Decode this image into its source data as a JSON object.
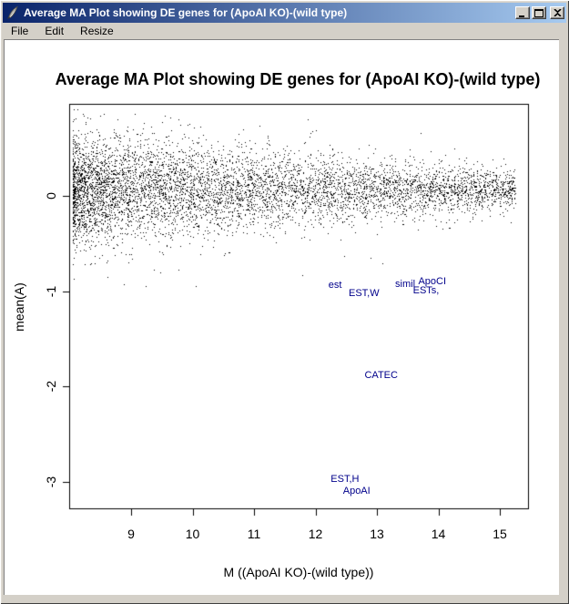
{
  "window": {
    "title": "Average MA Plot showing DE genes for (ApoAI KO)-(wild type)",
    "icon": "quill-feather-icon",
    "buttons": [
      {
        "name": "minimize"
      },
      {
        "name": "maximize"
      },
      {
        "name": "close"
      }
    ]
  },
  "menu": {
    "items": [
      "File",
      "Edit",
      "Resize"
    ]
  },
  "colors": {
    "titlebar_left": "#0a246a",
    "titlebar_right": "#a6caf0",
    "chrome": "#d4d0c8",
    "titlebar_text": "#ffffff",
    "plot_background": "#ffffff",
    "point_color": "#000000",
    "gene_label_color": "#00008b",
    "axis_color": "#000000"
  },
  "chart_data": {
    "type": "scatter",
    "title": "Average MA Plot showing DE genes for (ApoAI KO)-(wild type)",
    "xlabel": "M ((ApoAI KO)-(wild type))",
    "ylabel": "mean(A)",
    "x_ticks": [
      9,
      10,
      11,
      12,
      13,
      14,
      15
    ],
    "y_ticks": [
      0,
      -1,
      -2,
      -3
    ],
    "xlim": [
      8.0,
      15.45
    ],
    "ylim": [
      -3.28,
      0.97
    ],
    "grid": false,
    "legend": null,
    "gene_labels": [
      {
        "text": "est",
        "x": 12.32,
        "y": -0.94
      },
      {
        "text": "EST,W",
        "x": 12.79,
        "y": -1.02
      },
      {
        "text": "simil",
        "x": 13.46,
        "y": -0.93
      },
      {
        "text": "ApoCI",
        "x": 13.9,
        "y": -0.9
      },
      {
        "text": "ESTs,",
        "x": 13.8,
        "y": -0.99
      },
      {
        "text": "CATEC",
        "x": 13.07,
        "y": -1.88
      },
      {
        "text": "EST,H",
        "x": 12.48,
        "y": -2.97
      },
      {
        "text": "ApoAI",
        "x": 12.67,
        "y": -3.09
      }
    ],
    "cloud": {
      "description": "dense MA scatter of ~6500 genes centered near mean(A)=0, densest at low M (8-11), thinning and tightening toward M=15",
      "n": 6500,
      "seed": 11,
      "x_min": 8.05,
      "x_max": 15.25,
      "x_skew": 1.6,
      "y_mean": 0.07,
      "sd_at_left": 0.28,
      "sd_at_right": 0.095,
      "tail_fraction": 0.07,
      "tail_scale": 1.9,
      "y_clip": [
        -0.95,
        0.93
      ]
    }
  }
}
